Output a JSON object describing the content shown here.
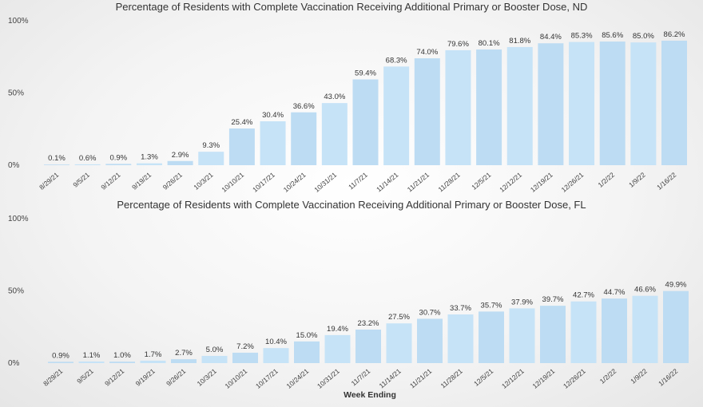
{
  "chart_data": [
    {
      "type": "bar",
      "title": "Percentage of Residents with Complete Vaccination Receiving Additional Primary or Booster Dose, ND",
      "categories": [
        "8/29/21",
        "9/5/21",
        "9/12/21",
        "9/19/21",
        "9/26/21",
        "10/3/21",
        "10/10/21",
        "10/17/21",
        "10/24/21",
        "10/31/21",
        "11/7/21",
        "11/14/21",
        "11/21/21",
        "11/28/21",
        "12/5/21",
        "12/12/21",
        "12/19/21",
        "12/26/21",
        "1/2/22",
        "1/9/22",
        "1/16/22"
      ],
      "values": [
        0.1,
        0.6,
        0.9,
        1.3,
        2.9,
        9.3,
        25.4,
        30.4,
        36.6,
        43.0,
        59.4,
        68.3,
        74.0,
        79.6,
        80.1,
        81.8,
        84.4,
        85.3,
        85.6,
        85.0,
        86.2
      ],
      "data_labels": [
        "0.1%",
        "0.6%",
        "0.9%",
        "1.3%",
        "2.9%",
        "9.3%",
        "25.4%",
        "30.4%",
        "36.6%",
        "43.0%",
        "59.4%",
        "68.3%",
        "74.0%",
        "79.6%",
        "80.1%",
        "81.8%",
        "84.4%",
        "85.3%",
        "85.6%",
        "85.0%",
        "86.2%"
      ],
      "yticks": [
        "0%",
        "50%",
        "100%"
      ],
      "ylim": [
        0,
        100
      ],
      "xlabel": "",
      "ylabel": ""
    },
    {
      "type": "bar",
      "title": "Percentage of Residents with Complete Vaccination Receiving Additional Primary or Booster Dose, FL",
      "categories": [
        "8/29/21",
        "9/5/21",
        "9/12/21",
        "9/19/21",
        "9/26/21",
        "10/3/21",
        "10/10/21",
        "10/17/21",
        "10/24/21",
        "10/31/21",
        "11/7/21",
        "11/14/21",
        "11/21/21",
        "11/28/21",
        "12/5/21",
        "12/12/21",
        "12/19/21",
        "12/26/21",
        "1/2/22",
        "1/9/22",
        "1/16/22"
      ],
      "values": [
        0.9,
        1.1,
        1.0,
        1.7,
        2.7,
        5.0,
        7.2,
        10.4,
        15.0,
        19.4,
        23.2,
        27.5,
        30.7,
        33.7,
        35.7,
        37.9,
        39.7,
        42.7,
        44.7,
        46.6,
        49.9
      ],
      "data_labels": [
        "0.9%",
        "1.1%",
        "1.0%",
        "1.7%",
        "2.7%",
        "5.0%",
        "7.2%",
        "10.4%",
        "15.0%",
        "19.4%",
        "23.2%",
        "27.5%",
        "30.7%",
        "33.7%",
        "35.7%",
        "37.9%",
        "39.7%",
        "42.7%",
        "44.7%",
        "46.6%",
        "49.9%"
      ],
      "yticks": [
        "0%",
        "50%",
        "100%"
      ],
      "ylim": [
        0,
        100
      ],
      "xlabel": "Week Ending",
      "ylabel": ""
    }
  ]
}
